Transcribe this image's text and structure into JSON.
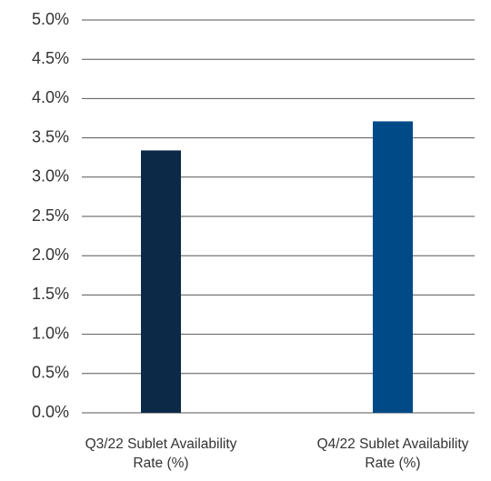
{
  "chart_data": {
    "type": "bar",
    "categories": [
      "Q3/22 Sublet Availability Rate (%)",
      "Q4/22 Sublet Availability Rate (%)"
    ],
    "values": [
      3.34,
      3.71
    ],
    "colors": [
      "#0c2a47",
      "#004a87"
    ],
    "ylim": [
      0,
      5
    ],
    "yticks": [
      {
        "value": 0,
        "label": "0.0%"
      },
      {
        "value": 0.5,
        "label": "0.5%"
      },
      {
        "value": 1,
        "label": "1.0%"
      },
      {
        "value": 1.5,
        "label": "1.5%"
      },
      {
        "value": 2,
        "label": "2.0%"
      },
      {
        "value": 2.5,
        "label": "2.5%"
      },
      {
        "value": 3,
        "label": "3.0%"
      },
      {
        "value": 3.5,
        "label": "3.5%"
      },
      {
        "value": 4,
        "label": "4.0%"
      },
      {
        "value": 4.5,
        "label": "4.5%"
      },
      {
        "value": 5,
        "label": "5.0%"
      }
    ],
    "grid": true
  }
}
